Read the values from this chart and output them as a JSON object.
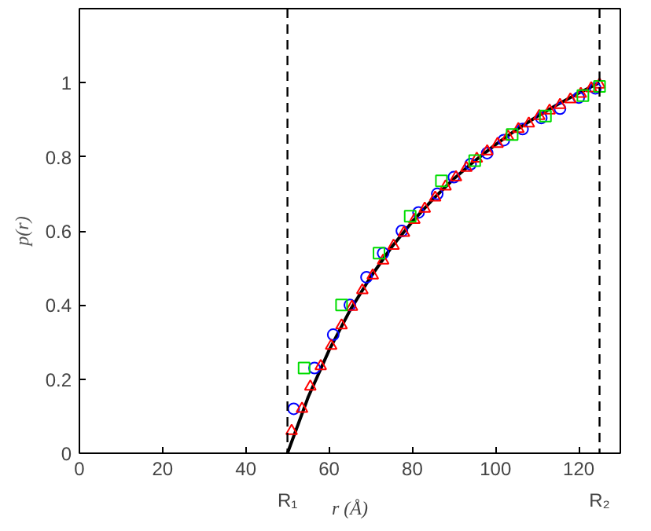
{
  "chart_data": {
    "type": "scatter",
    "xlabel": "r (Å)",
    "ylabel": "p(r)",
    "xlim": [
      0,
      130
    ],
    "ylim": [
      0,
      1.2
    ],
    "xticks": [
      0,
      20,
      40,
      60,
      80,
      100,
      120
    ],
    "yticks": [
      0,
      0.2,
      0.4,
      0.6,
      0.8,
      1
    ],
    "grid": false,
    "series": [
      {
        "type": "line",
        "color": "#000000",
        "line_style": "solid",
        "marker": "none",
        "x": [
          50,
          55,
          60,
          65,
          70,
          75,
          80,
          85,
          90,
          95,
          100,
          105,
          110,
          115,
          120,
          125
        ],
        "values": [
          0,
          0.152,
          0.278,
          0.385,
          0.476,
          0.556,
          0.625,
          0.686,
          0.741,
          0.789,
          0.833,
          0.873,
          0.909,
          0.942,
          0.972,
          1
        ]
      },
      {
        "type": "scatter",
        "color": "#0000ff",
        "marker": "circle",
        "x": [
          51.5,
          56.5,
          61,
          65,
          69,
          73,
          77.5,
          81.5,
          86,
          90,
          94,
          98,
          102,
          106.5,
          111,
          115.5,
          120,
          124
        ],
        "values": [
          0.12,
          0.23,
          0.32,
          0.4,
          0.475,
          0.54,
          0.6,
          0.65,
          0.7,
          0.745,
          0.78,
          0.81,
          0.845,
          0.875,
          0.905,
          0.93,
          0.96,
          0.985
        ]
      },
      {
        "type": "scatter",
        "color": "#ff0000",
        "marker": "triangle",
        "x": [
          51,
          53.5,
          55.5,
          58,
          60.5,
          63,
          65.5,
          68,
          70.5,
          73,
          75.5,
          78,
          80.5,
          83,
          85.5,
          88,
          90.5,
          93,
          95.5,
          98,
          100.5,
          103,
          105.5,
          108,
          110.5,
          113,
          115.5,
          118,
          120.5,
          123,
          125
        ],
        "values": [
          0.06,
          0.12,
          0.18,
          0.235,
          0.29,
          0.345,
          0.395,
          0.44,
          0.48,
          0.52,
          0.56,
          0.595,
          0.63,
          0.66,
          0.69,
          0.72,
          0.745,
          0.77,
          0.795,
          0.815,
          0.835,
          0.855,
          0.875,
          0.89,
          0.91,
          0.925,
          0.94,
          0.955,
          0.97,
          0.985,
          0.995
        ]
      },
      {
        "type": "scatter",
        "color": "#00dd00",
        "marker": "square",
        "x": [
          54,
          63,
          72,
          79.5,
          87,
          95,
          104,
          112,
          121,
          125
        ],
        "values": [
          0.23,
          0.4,
          0.54,
          0.64,
          0.735,
          0.79,
          0.86,
          0.91,
          0.965,
          0.99
        ]
      }
    ],
    "ref_lines": [
      {
        "axis": "x",
        "value": 50,
        "label": "R₁",
        "color": "#000000",
        "line_style": "dashed"
      },
      {
        "axis": "x",
        "value": 125,
        "label": "R₂",
        "color": "#000000",
        "line_style": "dashed"
      }
    ]
  }
}
